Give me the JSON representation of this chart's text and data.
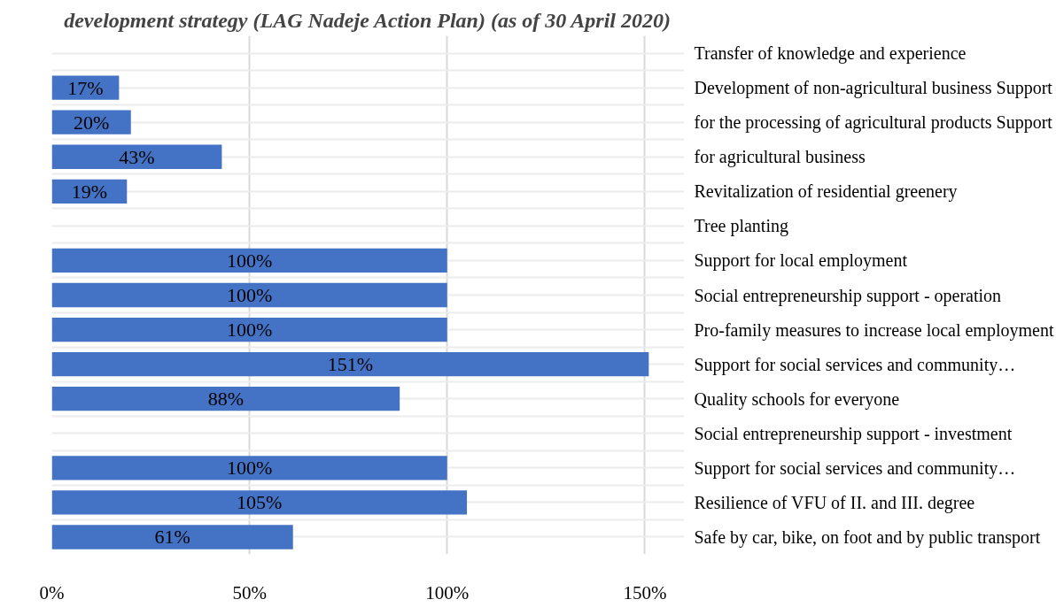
{
  "chart_data": {
    "type": "bar",
    "orientation": "horizontal",
    "title": "development strategy (LAG Nadeje Action Plan) (as of 30 April 2020)",
    "categories": [
      "Transfer of knowledge and experience",
      "Development of non-agricultural business Support",
      "for the processing of agricultural products Support",
      "for agricultural business",
      "Revitalization of residential greenery",
      "Tree planting",
      "Support for local employment",
      "Social entrepreneurship support - operation",
      "Pro-family measures to increase local employment",
      "Support for social services and community…",
      "Quality schools for everyone",
      "Social entrepreneurship support - investment",
      "Support for social services and community…",
      "Resilience of VFU of II. and III. degree",
      "Safe by car, bike, on foot and by public transport"
    ],
    "values": [
      null,
      17,
      20,
      43,
      19,
      null,
      100,
      100,
      100,
      151,
      88,
      null,
      100,
      105,
      61
    ],
    "value_labels": [
      null,
      "17%",
      "20%",
      "43%",
      "19%",
      null,
      "100%",
      "100%",
      "100%",
      "151%",
      "88%",
      null,
      "100%",
      "105%",
      "61%"
    ],
    "color": "#4472c4",
    "xlim": [
      0,
      160
    ],
    "xticks": [
      {
        "value": 0,
        "label": "0%"
      },
      {
        "value": 50,
        "label": "50%"
      },
      {
        "value": 100,
        "label": "100%"
      },
      {
        "value": 150,
        "label": "150%"
      }
    ],
    "grid": true
  }
}
